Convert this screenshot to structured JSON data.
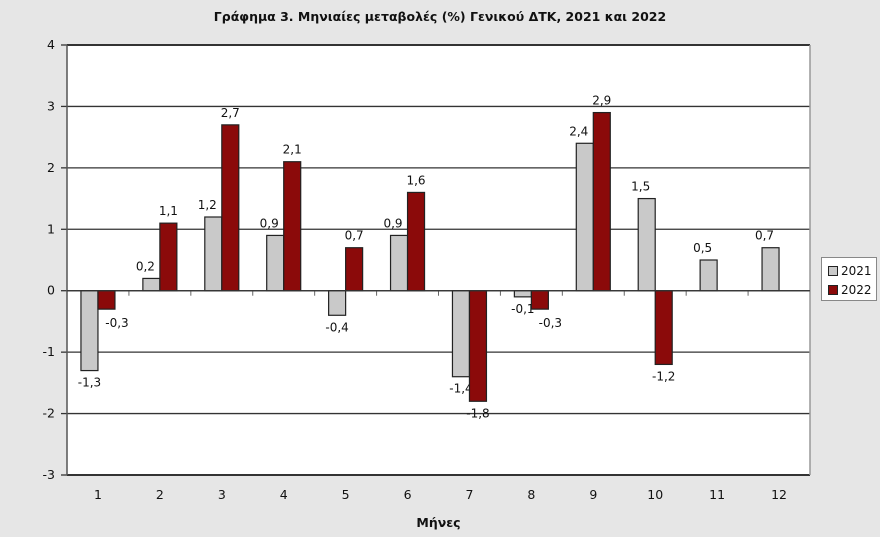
{
  "chart_data": {
    "type": "bar",
    "title": "Γράφημα 3. Μηνιαίες μεταβολές (%) Γενικού ΔΤΚ, 2021 και 2022",
    "xlabel": "Μήνες",
    "ylabel": "",
    "categories": [
      "1",
      "2",
      "3",
      "4",
      "5",
      "6",
      "7",
      "8",
      "9",
      "10",
      "11",
      "12"
    ],
    "series": [
      {
        "name": "2021",
        "color": "#c9c9c9",
        "values": [
          -1.3,
          0.2,
          1.2,
          0.9,
          -0.4,
          0.9,
          -1.4,
          -0.1,
          2.4,
          1.5,
          0.5,
          0.7
        ],
        "labels": [
          "-1,3",
          "0,2",
          "1,2",
          "0,9",
          "-0,4",
          "0,9",
          "-1,4",
          "-0,1",
          "2,4",
          "1,5",
          "0,5",
          "0,7"
        ]
      },
      {
        "name": "2022",
        "color": "#8b0a0a",
        "values": [
          -0.3,
          1.1,
          2.7,
          2.1,
          0.7,
          1.6,
          -1.8,
          -0.3,
          2.9,
          -1.2,
          null,
          null
        ],
        "labels": [
          "-0,3",
          "1,1",
          "2,7",
          "2,1",
          "0,7",
          "1,6",
          "-1,8",
          "-0,3",
          "2,9",
          "-1,2",
          "",
          ""
        ]
      }
    ],
    "ylim": [
      -3,
      4
    ],
    "yticks": [
      "-3",
      "-2",
      "-1",
      "0",
      "1",
      "2",
      "3",
      "4"
    ],
    "grid": true,
    "legend_position": "right"
  },
  "legend": {
    "items": [
      {
        "label": "2021",
        "color": "#c9c9c9"
      },
      {
        "label": "2022",
        "color": "#8b0a0a"
      }
    ]
  }
}
